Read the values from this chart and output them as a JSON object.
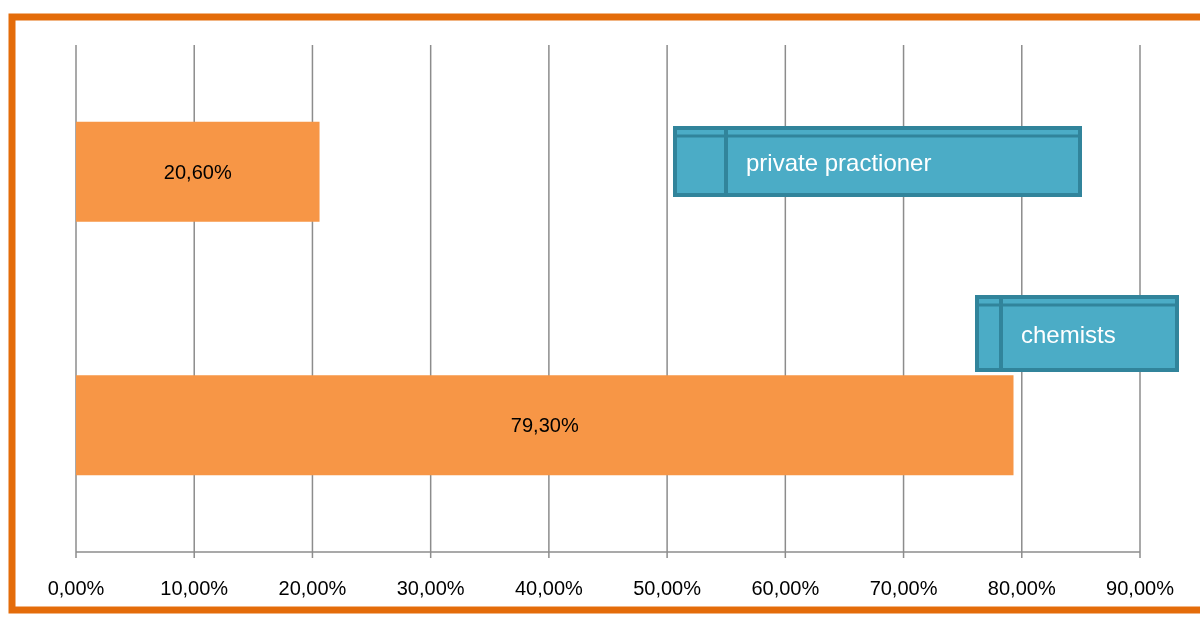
{
  "chart_data": {
    "type": "bar",
    "orientation": "horizontal",
    "categories": [
      "private practioner",
      "chemists"
    ],
    "values": [
      20.6,
      79.3
    ],
    "value_labels": [
      "20,60%",
      "79,30%"
    ],
    "color": "#f79646",
    "xlim": [
      0,
      90
    ],
    "xticks": [
      {
        "value": 0,
        "label": "0,00%"
      },
      {
        "value": 10,
        "label": "10,00%"
      },
      {
        "value": 20,
        "label": "20,00%"
      },
      {
        "value": 30,
        "label": "30,00%"
      },
      {
        "value": 40,
        "label": "40,00%"
      },
      {
        "value": 50,
        "label": "50,00%"
      },
      {
        "value": 60,
        "label": "60,00%"
      },
      {
        "value": 70,
        "label": "70,00%"
      },
      {
        "value": 80,
        "label": "80,00%"
      },
      {
        "value": 90,
        "label": "90,00%"
      }
    ],
    "grid": "x"
  }
}
